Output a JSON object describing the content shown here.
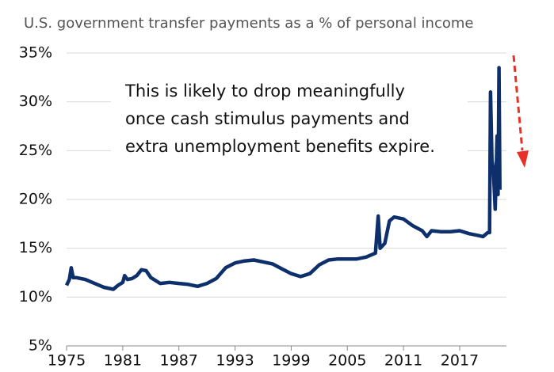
{
  "chart_data": {
    "type": "line",
    "title": "U.S. government transfer payments as a % of personal income",
    "annotation": [
      "This is likely to drop meaningfully",
      "once cash stimulus payments and",
      "extra unemployment benefits expire."
    ],
    "x": [
      1975.0,
      1975.3,
      1975.5,
      1975.7,
      1976,
      1977,
      1978,
      1979,
      1980,
      1980.5,
      1981,
      1981.2,
      1981.5,
      1982,
      1982.5,
      1983,
      1983.5,
      1984,
      1985,
      1986,
      1987,
      1988,
      1989,
      1990,
      1991,
      1992,
      1993,
      1994,
      1995,
      1996,
      1997,
      1998,
      1999,
      2000,
      2001,
      2002,
      2003,
      2004,
      2005,
      2006,
      2007,
      2008,
      2008.3,
      2008.5,
      2009,
      2009.5,
      2010,
      2011,
      2012,
      2013,
      2013.5,
      2014,
      2015,
      2016,
      2017,
      2018,
      2019,
      2019.5,
      2020,
      2020.2,
      2020.3,
      2020.45,
      2020.6,
      2020.8,
      2021.0,
      2021.1,
      2021.2,
      2021.3
    ],
    "series": [
      {
        "name": "Transfer payments",
        "color": "#0d2f6b",
        "values": [
          11.2,
          11.8,
          13.0,
          12.0,
          12.0,
          11.8,
          11.4,
          11.0,
          10.8,
          11.2,
          11.5,
          12.2,
          11.8,
          11.9,
          12.2,
          12.8,
          12.7,
          12.0,
          11.4,
          11.5,
          11.4,
          11.3,
          11.1,
          11.4,
          11.9,
          13.0,
          13.5,
          13.7,
          13.8,
          13.6,
          13.4,
          12.9,
          12.4,
          12.1,
          12.4,
          13.3,
          13.8,
          13.9,
          13.9,
          13.9,
          14.1,
          14.5,
          18.3,
          15.0,
          15.5,
          17.8,
          18.2,
          18.0,
          17.3,
          16.8,
          16.2,
          16.8,
          16.7,
          16.7,
          16.8,
          16.5,
          16.3,
          16.2,
          16.6,
          16.6,
          31.0,
          24.0,
          23.0,
          19.0,
          26.5,
          20.5,
          33.5,
          21.0
        ]
      }
    ],
    "xlim": [
      1975,
      2022
    ],
    "xticks": [
      1975,
      1981,
      1987,
      1993,
      1999,
      2005,
      2011,
      2017
    ],
    "ylim": [
      5,
      35
    ],
    "yticks": [
      {
        "value": 5,
        "label": "5%"
      },
      {
        "value": 10,
        "label": "10%"
      },
      {
        "value": 15,
        "label": "15%"
      },
      {
        "value": 20,
        "label": "20%"
      },
      {
        "value": 25,
        "label": "25%"
      },
      {
        "value": 30,
        "label": "30%"
      },
      {
        "value": 35,
        "label": "35%"
      }
    ],
    "grid": true
  }
}
